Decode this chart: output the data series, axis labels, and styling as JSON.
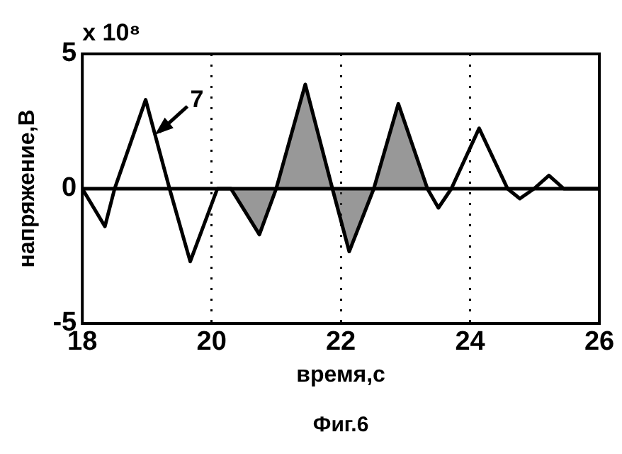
{
  "chart_data": {
    "type": "line",
    "xlabel": "время,с",
    "ylabel": "напряжение,В",
    "annotations": [
      "x 10⁸",
      {
        "text": "7",
        "x": 19.1,
        "y": 2
      },
      "Фиг.6"
    ],
    "xlim": [
      18,
      26
    ],
    "xticks": [
      18,
      20,
      22,
      24,
      26
    ],
    "ylim": [
      -5,
      5
    ],
    "yticks": [
      -5,
      0,
      5
    ],
    "grid": "x",
    "legend": false,
    "marker": "none",
    "line_style": "solid",
    "ref_lines": [
      {
        "axis": "y",
        "value": 0,
        "color": "#000000"
      }
    ],
    "series": [
      {
        "color": "#000000",
        "x": [
          18,
          18.35,
          18.5,
          18.98,
          19.35,
          19.67,
          20.09,
          20.3,
          20.74,
          21.0,
          21.45,
          21.87,
          22.13,
          22.51,
          22.89,
          23.34,
          23.51,
          23.71,
          24.14,
          24.58,
          24.77,
          24.99,
          25.22,
          25.45,
          26
        ],
        "values": [
          0,
          -1.4,
          0,
          3.3,
          0,
          -2.7,
          0,
          0,
          -1.7,
          0,
          3.87,
          0,
          -2.33,
          0,
          3.15,
          0,
          -0.71,
          0,
          2.24,
          0,
          -0.37,
          0,
          0.49,
          0,
          0
        ]
      },
      {
        "type": "area",
        "color": "#444444",
        "x": [
          20.3,
          20.74,
          21.0,
          21.45,
          21.87,
          22.13,
          22.51,
          22.89,
          23.34
        ],
        "values": [
          0,
          -1.7,
          0,
          3.87,
          0,
          -2.33,
          0,
          3.15,
          0
        ]
      }
    ]
  }
}
